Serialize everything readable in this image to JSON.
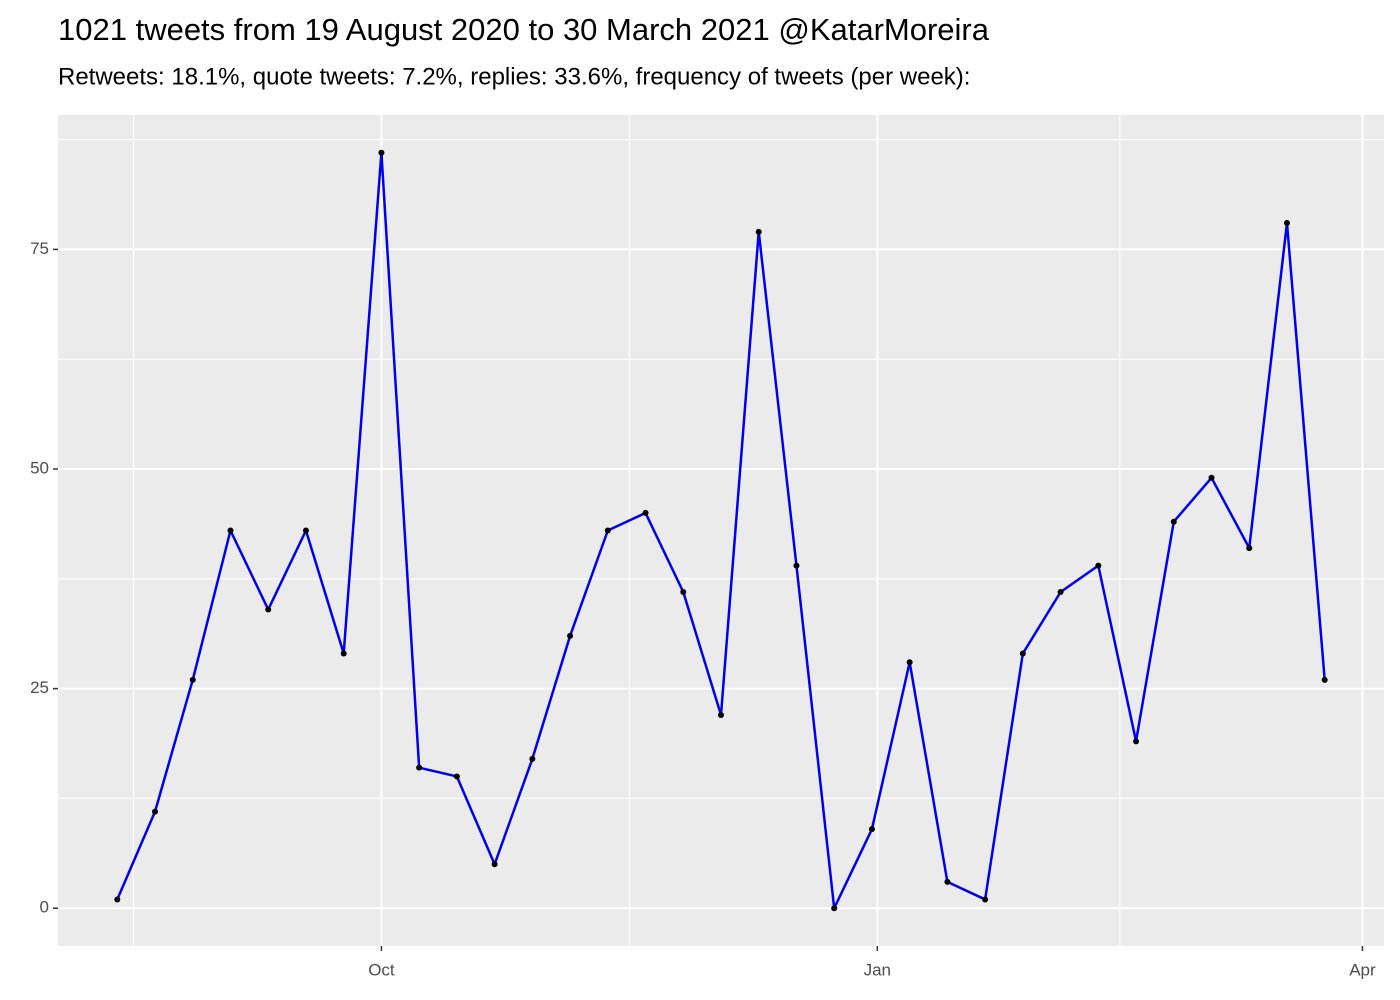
{
  "chart_data": {
    "type": "line",
    "title": "1021 tweets from 19 August 2020 to 30 March 2021 @KatarMoreira",
    "subtitle": "Retweets: 18.1%, quote tweets: 7.2%, replies: 33.6%, frequency of tweets (per week):",
    "x": [
      "2020-08-13",
      "2020-08-20",
      "2020-08-27",
      "2020-09-03",
      "2020-09-10",
      "2020-09-17",
      "2020-09-24",
      "2020-10-01",
      "2020-10-08",
      "2020-10-15",
      "2020-10-22",
      "2020-10-29",
      "2020-11-05",
      "2020-11-12",
      "2020-11-19",
      "2020-11-26",
      "2020-12-03",
      "2020-12-10",
      "2020-12-17",
      "2020-12-24",
      "2020-12-31",
      "2021-01-07",
      "2021-01-14",
      "2021-01-21",
      "2021-01-28",
      "2021-02-04",
      "2021-02-11",
      "2021-02-18",
      "2021-02-25",
      "2021-03-04",
      "2021-03-11",
      "2021-03-18",
      "2021-03-25"
    ],
    "series": [
      {
        "color": "#0000ee",
        "point_color": "#000000",
        "values": [
          1,
          11,
          26,
          43,
          34,
          43,
          29,
          86,
          16,
          15,
          5,
          17,
          31,
          43,
          45,
          36,
          22,
          77,
          39,
          0,
          9,
          28,
          3,
          1,
          29,
          36,
          39,
          19,
          44,
          49,
          41,
          78,
          26
        ]
      }
    ],
    "xlim": [
      "2020-08-02",
      "2021-04-05"
    ],
    "xticks": [
      {
        "value": "2020-10-01",
        "label": "Oct"
      },
      {
        "value": "2021-01-01",
        "label": "Jan"
      },
      {
        "value": "2021-04-01",
        "label": "Apr"
      }
    ],
    "ylim": [
      -4.3,
      90.3
    ],
    "yticks": [
      0,
      25,
      50,
      75
    ],
    "grid": true
  }
}
